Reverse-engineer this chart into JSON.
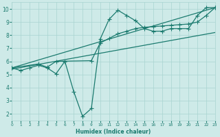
{
  "line1_x": [
    0,
    1,
    2,
    3,
    4,
    5,
    6,
    7,
    8,
    9,
    10,
    11,
    12,
    13,
    14,
    15,
    16,
    17,
    18,
    19,
    20,
    21,
    22,
    23
  ],
  "line1_y": [
    5.5,
    5.3,
    5.5,
    5.7,
    5.5,
    5.05,
    6.0,
    3.7,
    1.8,
    2.4,
    7.7,
    9.2,
    9.9,
    9.5,
    9.1,
    8.5,
    8.3,
    8.3,
    8.5,
    8.5,
    8.5,
    9.5,
    10.1,
    10.1
  ],
  "line2_x": [
    0,
    3,
    4,
    5,
    9,
    10,
    11,
    12,
    13,
    14,
    15,
    16,
    17,
    18,
    19,
    20,
    21,
    22,
    23
  ],
  "line2_y": [
    5.5,
    5.8,
    5.55,
    6.0,
    6.05,
    7.4,
    7.75,
    8.1,
    8.3,
    8.5,
    8.6,
    8.65,
    8.7,
    8.75,
    8.8,
    8.85,
    9.0,
    9.5,
    10.1
  ],
  "line3_x": [
    0,
    23
  ],
  "line3_y": [
    5.5,
    10.1
  ],
  "line4_x": [
    0,
    23
  ],
  "line4_y": [
    5.4,
    8.2
  ],
  "color": "#1a7a6e",
  "bg_color": "#ceeae8",
  "grid_color": "#a8d4d0",
  "xlabel": "Humidex (Indice chaleur)",
  "xlim": [
    0,
    23
  ],
  "ylim": [
    1.5,
    10.5
  ],
  "yticks": [
    2,
    3,
    4,
    5,
    6,
    7,
    8,
    9,
    10
  ],
  "xticks": [
    0,
    1,
    2,
    3,
    4,
    5,
    6,
    7,
    8,
    9,
    10,
    11,
    12,
    13,
    14,
    15,
    16,
    17,
    18,
    19,
    20,
    21,
    22,
    23
  ],
  "marker_size": 3,
  "linewidth": 0.9
}
